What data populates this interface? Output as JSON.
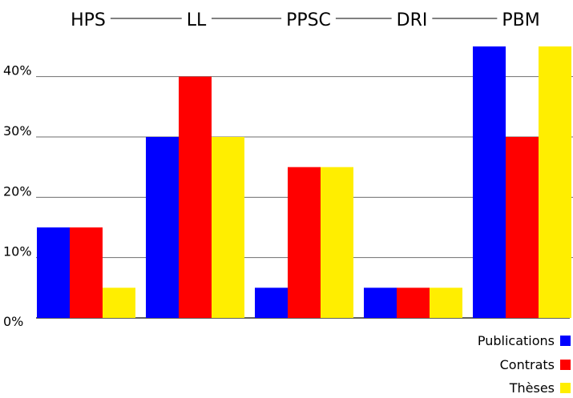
{
  "chart_data": {
    "type": "bar",
    "categories": [
      "HPS",
      "LL",
      "PPSC",
      "DRI",
      "PBM"
    ],
    "series": [
      {
        "name": "Publications",
        "color": "#0000ff",
        "values": [
          15,
          30,
          5,
          5,
          45
        ]
      },
      {
        "name": "Contrats",
        "color": "#ff0000",
        "values": [
          15,
          40,
          25,
          5,
          30
        ]
      },
      {
        "name": "Thèses",
        "color": "#ffee00",
        "values": [
          5,
          30,
          25,
          5,
          45
        ]
      }
    ],
    "yticks": [
      0,
      10,
      20,
      30,
      40
    ],
    "ytick_labels": [
      "0%",
      "10%",
      "20%",
      "30%",
      "40%"
    ],
    "ylim": [
      0,
      45
    ],
    "grid": true,
    "legend_position": "bottom-right",
    "category_labels_position": "top"
  }
}
